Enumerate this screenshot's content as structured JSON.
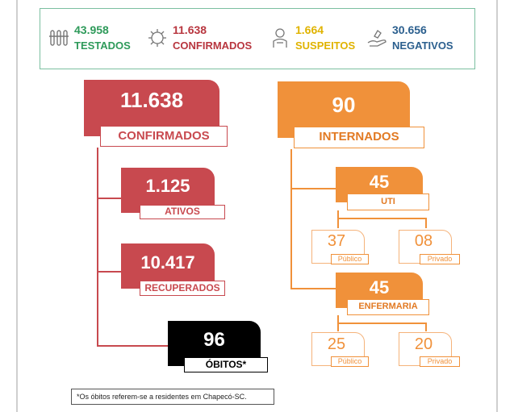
{
  "summary": {
    "testados": {
      "value": "43.958",
      "label": "TESTADOS",
      "icon": "test-tubes-icon",
      "color": "#2e9a5a"
    },
    "confirmados": {
      "value": "11.638",
      "label": "CONFIRMADOS",
      "icon": "virus-icon",
      "color": "#b8363f"
    },
    "suspeitos": {
      "value": "1.664",
      "label": "SUSPEITOS",
      "icon": "person-icon",
      "color": "#e0b300"
    },
    "negativos": {
      "value": "30.656",
      "label": "NEGATIVOS",
      "icon": "hand-icon",
      "color": "#2b5f8e"
    }
  },
  "left": {
    "confirmados": {
      "value": "11.638",
      "label": "CONFIRMADOS"
    },
    "ativos": {
      "value": "1.125",
      "label": "ATIVOS"
    },
    "recuperados": {
      "value": "10.417",
      "label": "RECUPERADOS"
    },
    "obitos": {
      "value": "96",
      "label": "ÓBITOS*"
    }
  },
  "right": {
    "internados": {
      "value": "90",
      "label": "INTERNADOS"
    },
    "uti": {
      "value": "45",
      "label": "UTI",
      "publico": {
        "value": "37",
        "label": "Público"
      },
      "privado": {
        "value": "08",
        "label": "Privado"
      }
    },
    "enfermaria": {
      "value": "45",
      "label": "ENFERMARIA",
      "publico": {
        "value": "25",
        "label": "Público"
      },
      "privado": {
        "value": "20",
        "label": "Privado"
      }
    }
  },
  "footnote": "*Os óbitos referem-se a residentes em Chapecó-SC.",
  "colors": {
    "red": "#c8494f",
    "orange": "#f0913a",
    "black": "#000000",
    "green_border": "#7bbfa0"
  }
}
